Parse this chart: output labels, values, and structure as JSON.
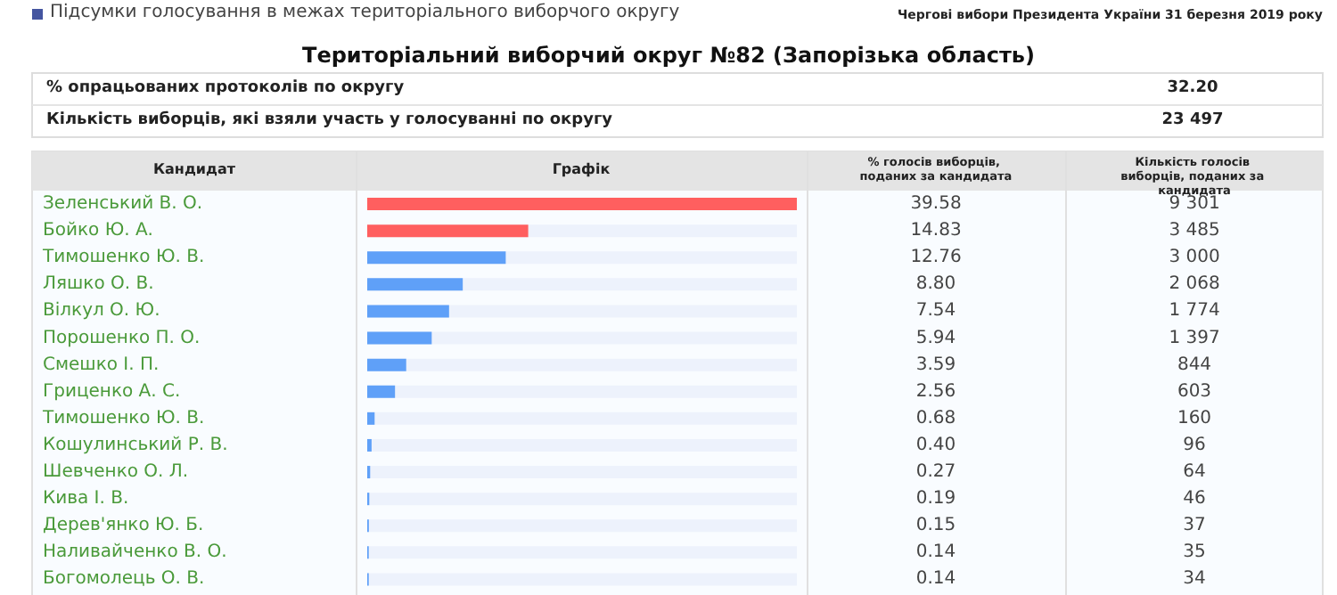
{
  "chart_data": {
    "type": "bar",
    "orientation": "horizontal",
    "title": "Територіальний виборчий округ №82 (Запорізька область)",
    "ylabel": "Кандидат",
    "xlabel": "Графік",
    "categories": [
      "Зеленський В. О.",
      "Бойко Ю. А.",
      "Тимошенко Ю. В.",
      "Ляшко О. В.",
      "Вілкул О. Ю.",
      "Порошенко П. О.",
      "Смешко І. П.",
      "Гриценко А. С.",
      "Тимошенко Ю. В.",
      "Кошулинський Р. В.",
      "Шевченко О. Л.",
      "Кива І. В.",
      "Дерев'янко Ю. Б.",
      "Наливайченко В. О.",
      "Богомолець О. В."
    ],
    "values": [
      39.58,
      14.83,
      12.76,
      8.8,
      7.54,
      5.94,
      3.59,
      2.56,
      0.68,
      0.4,
      0.27,
      0.19,
      0.15,
      0.14,
      0.14
    ],
    "colors": [
      "#ff5f5f",
      "#ff5f5f",
      "#5fa0f8",
      "#5fa0f8",
      "#5fa0f8",
      "#5fa0f8",
      "#5fa0f8",
      "#5fa0f8",
      "#5fa0f8",
      "#5fa0f8",
      "#5fa0f8",
      "#5fa0f8",
      "#5fa0f8",
      "#5fa0f8",
      "#5fa0f8"
    ],
    "xlim": [
      0,
      39.58
    ],
    "tick_labels": "y",
    "value_labels": [
      "39.58",
      "14.83",
      "12.76",
      "8.80",
      "7.54",
      "5.94",
      "3.59",
      "2.56",
      "0.68",
      "0.40",
      "0.27",
      "0.19",
      "0.15",
      "0.14",
      "0.14"
    ],
    "annotations": [
      "Підсумки голосування в межах територіального виборчого округу",
      "Чергові вибори Президента України 31 березня 2019 року",
      "% опрацьованих протоколів по округу",
      "32.20",
      "Кількість виборців, які взяли участь у голосуванні по округу",
      "23 497",
      "% голосів виборців, поданих за кандидата",
      "Кількість голосів виборців, поданих за кандидата",
      "9 301",
      "3 485",
      "3 000",
      "2 068",
      "1 774",
      "1 397",
      "844",
      "603",
      "160",
      "96",
      "64",
      "46",
      "37",
      "35",
      "34"
    ]
  }
}
